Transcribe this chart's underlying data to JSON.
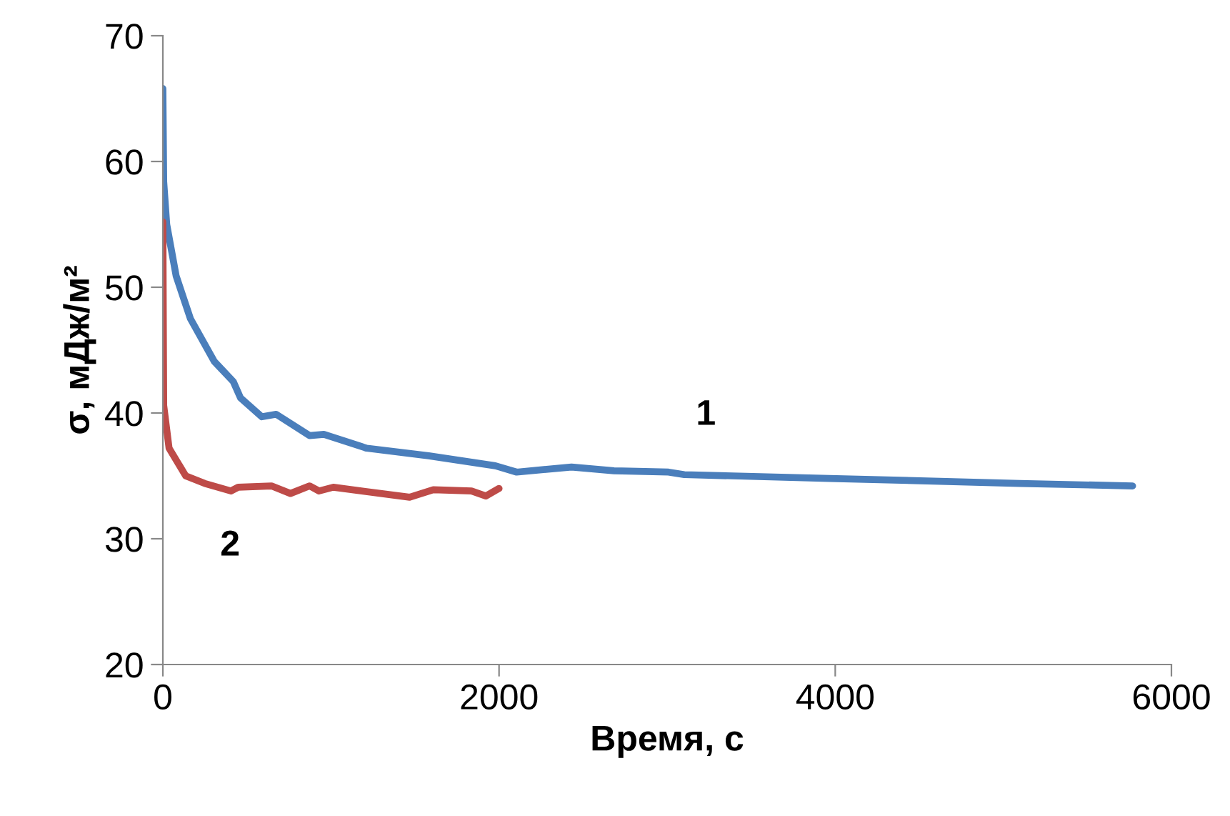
{
  "chart_data": {
    "type": "line",
    "xlabel": "Время, с",
    "ylabel": "σ, мДж/м²",
    "xlim": [
      0,
      6000
    ],
    "xticks": [
      0,
      2000,
      4000,
      6000
    ],
    "ylim": [
      20,
      70
    ],
    "yticks": [
      20,
      30,
      40,
      50,
      60,
      70
    ],
    "grid": false,
    "legend": false,
    "series": [
      {
        "name": "1",
        "color": "#4a7ebb",
        "x": [
          0,
          5,
          23,
          79,
          164,
          306,
          419,
          462,
          589,
          674,
          873,
          958,
          1213,
          1581,
          1978,
          2105,
          2431,
          2684,
          3008,
          3102,
          3965,
          5098,
          5769
        ],
        "values": [
          65.8,
          58.4,
          55.0,
          50.9,
          47.5,
          44.1,
          42.5,
          41.2,
          39.7,
          39.9,
          38.2,
          38.3,
          37.2,
          36.6,
          35.8,
          35.3,
          35.7,
          35.4,
          35.3,
          35.1,
          34.8,
          34.4,
          34.2
        ]
      },
      {
        "name": "2",
        "color": "#be4b48",
        "x": [
          0,
          5,
          37,
          136,
          249,
          405,
          448,
          646,
          759,
          873,
          929,
          1014,
          1468,
          1609,
          1836,
          1921,
          2000
        ],
        "values": [
          55.2,
          40.6,
          37.2,
          35.0,
          34.4,
          33.8,
          34.1,
          34.2,
          33.6,
          34.2,
          33.8,
          34.1,
          33.3,
          33.9,
          33.8,
          33.4,
          34.0
        ]
      }
    ]
  }
}
